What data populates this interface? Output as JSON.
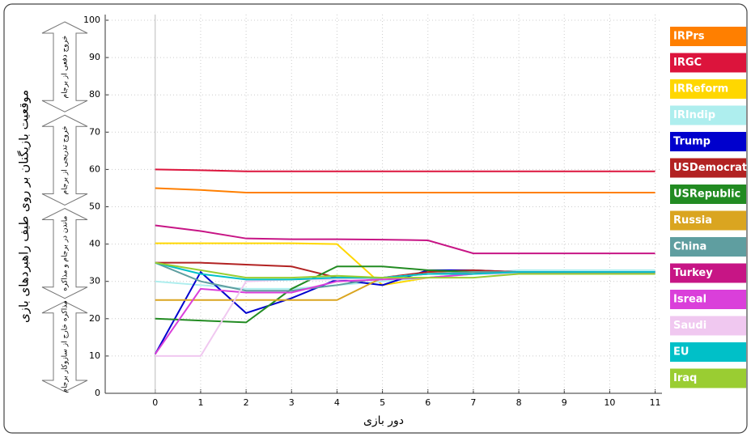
{
  "chart_data": {
    "type": "line",
    "y_label": "موقعیت بازیگنان بر روی طیف راهبردهای بازی",
    "x_label": "دور بازی",
    "annotations": [
      "خروج دفعی از برجام",
      "خروج تدریجی از برجام",
      "ماندن در برجام و مذاکره",
      "مذاکره خارج از سازوکار برجام"
    ],
    "x": [
      0,
      1,
      2,
      3,
      4,
      5,
      6,
      7,
      8,
      9,
      10,
      11
    ],
    "xlim": [
      -1.1,
      11.15
    ],
    "xticks": [
      0,
      1,
      2,
      3,
      4,
      5,
      6,
      7,
      8,
      9,
      10,
      11
    ],
    "ylim": [
      0,
      100
    ],
    "yticks": [
      0,
      10,
      20,
      30,
      40,
      50,
      60,
      70,
      80,
      90,
      100
    ],
    "grid": true,
    "legend": "right",
    "series": [
      {
        "name": "IRPrs",
        "color": "#ff7f00",
        "values": [
          55,
          54.5,
          53.8,
          53.8,
          53.8,
          53.8,
          53.8,
          53.8,
          53.8,
          53.8,
          53.8,
          53.8
        ]
      },
      {
        "name": "IRGC",
        "color": "#dc143c",
        "values": [
          60,
          59.8,
          59.5,
          59.5,
          59.5,
          59.5,
          59.5,
          59.5,
          59.5,
          59.5,
          59.5,
          59.5
        ]
      },
      {
        "name": "IRReform",
        "color": "#ffd700",
        "values": [
          40.2,
          40.2,
          40.2,
          40.2,
          40,
          29,
          31,
          32,
          32.5,
          32.5,
          32.5,
          32.5
        ]
      },
      {
        "name": "IRIndip",
        "color": "#aeeeee",
        "values": [
          30,
          29,
          28,
          28,
          29,
          30,
          31,
          32,
          33,
          33,
          33,
          33
        ]
      },
      {
        "name": "Trump",
        "color": "#0000cd",
        "values": [
          10.5,
          32.5,
          21.5,
          25.5,
          30.5,
          29,
          33,
          33,
          32.5,
          32.5,
          32.5,
          32.5
        ]
      },
      {
        "name": "USDemocrat",
        "color": "#b22222",
        "values": [
          35,
          35,
          34.5,
          34,
          31,
          31,
          32.5,
          33,
          32.5,
          32.5,
          32.5,
          32.5
        ]
      },
      {
        "name": "USRepublic",
        "color": "#228b22",
        "values": [
          20,
          19.5,
          19,
          28,
          34,
          34,
          33,
          32.5,
          32,
          32,
          32,
          32
        ]
      },
      {
        "name": "Russia",
        "color": "#daa520",
        "values": [
          25,
          25,
          25,
          25,
          25,
          31,
          32,
          32.5,
          32.5,
          32.5,
          32.5,
          32.5
        ]
      },
      {
        "name": "China",
        "color": "#5f9ea0",
        "values": [
          35,
          30,
          27.5,
          27.5,
          29,
          31,
          32,
          32.5,
          32.5,
          32.5,
          32.5,
          32.5
        ]
      },
      {
        "name": "Turkey",
        "color": "#c71585",
        "values": [
          45,
          43.5,
          41.5,
          41.3,
          41.3,
          41.2,
          41,
          37.5,
          37.5,
          37.5,
          37.5,
          37.5
        ]
      },
      {
        "name": "Isreal",
        "color": "#da3fda",
        "values": [
          10.5,
          28,
          27,
          27,
          30,
          30.5,
          31,
          32,
          32.5,
          32.5,
          32.5,
          32.5
        ]
      },
      {
        "name": "Saudi",
        "color": "#f0c8f0",
        "values": [
          10,
          10,
          30,
          30.5,
          30.5,
          31,
          32,
          32,
          32,
          32,
          32,
          32
        ]
      },
      {
        "name": "EU",
        "color": "#00c0c8",
        "values": [
          35,
          32,
          30.5,
          30.5,
          31,
          31,
          32,
          32,
          32.5,
          32.5,
          32.5,
          32.5
        ]
      },
      {
        "name": "Iraq",
        "color": "#9acd32",
        "values": [
          35,
          33,
          31,
          31,
          31.5,
          31,
          31,
          31,
          32,
          32,
          32,
          32
        ]
      }
    ]
  }
}
